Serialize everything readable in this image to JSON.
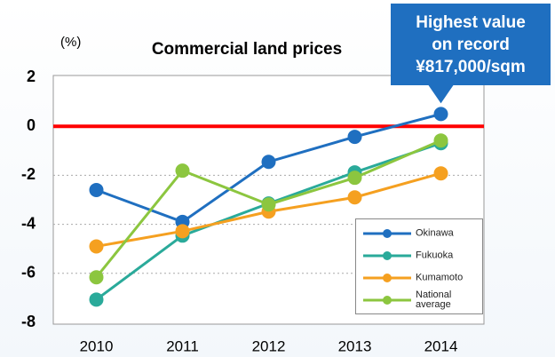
{
  "chart_data": {
    "type": "line",
    "title": "Commercial land prices",
    "y_label": "(%)",
    "categories": [
      "2010",
      "2011",
      "2012",
      "2013",
      "2014"
    ],
    "series": [
      {
        "name": "Okinawa",
        "color": "#1f6fc0",
        "values": [
          -2.6,
          -3.9,
          -1.45,
          -0.43,
          0.5
        ]
      },
      {
        "name": "Fukuoka",
        "color": "#2aaa9a",
        "values": [
          -7.07,
          -4.46,
          -3.15,
          -1.88,
          -0.69
        ]
      },
      {
        "name": "Kumamoto",
        "color": "#f5a020",
        "values": [
          -4.9,
          -4.28,
          -3.48,
          -2.9,
          -1.92
        ]
      },
      {
        "name": "National average",
        "color": "#8cc63f",
        "values": [
          -6.16,
          -1.81,
          -3.19,
          -2.1,
          -0.58
        ]
      }
    ],
    "ylim": [
      -8,
      2
    ],
    "yticks": [
      2,
      0,
      -2,
      -4,
      -6,
      -8
    ],
    "grid": true,
    "reference_line": {
      "value": 0,
      "color": "#ff0000"
    },
    "annotation": {
      "lines": [
        "Highest value",
        "on record",
        "¥817,000/sqm"
      ],
      "color": "#1f6fc0"
    },
    "legend": "lower right"
  }
}
